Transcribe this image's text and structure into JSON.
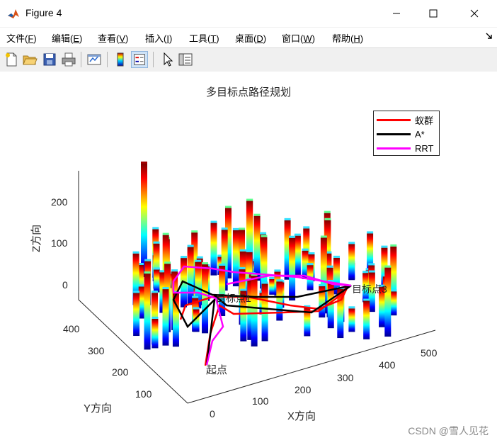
{
  "window": {
    "title": "Figure 4",
    "accent": "#d95319"
  },
  "menu": [
    {
      "label": "文件(",
      "key": "F",
      "suffix": ")"
    },
    {
      "label": "编辑(",
      "key": "E",
      "suffix": ")"
    },
    {
      "label": "查看(",
      "key": "V",
      "suffix": ")"
    },
    {
      "label": "插入(",
      "key": "I",
      "suffix": ")"
    },
    {
      "label": "工具(",
      "key": "T",
      "suffix": ")"
    },
    {
      "label": "桌面(",
      "key": "D",
      "suffix": ")"
    },
    {
      "label": "窗口(",
      "key": "W",
      "suffix": ")"
    },
    {
      "label": "帮助(",
      "key": "H",
      "suffix": ")"
    }
  ],
  "toolbar": {
    "icons": [
      "new-figure-icon",
      "open-file-icon",
      "save-icon",
      "print-icon",
      "link-plot-icon",
      "colorbar-icon",
      "legend-icon",
      "pointer-icon",
      "property-editor-icon"
    ]
  },
  "chart_data": {
    "type": "3d-bar-with-paths",
    "title": "多目标点路径规划",
    "xlabel": "X方向",
    "ylabel": "Y方向",
    "zlabel": "Z方向",
    "x_ticks": [
      "0",
      "100",
      "200",
      "300",
      "400",
      "500"
    ],
    "y_ticks": [
      "100",
      "200",
      "300",
      "400"
    ],
    "z_ticks": [
      "0",
      "100",
      "200"
    ],
    "xlim": [
      0,
      500
    ],
    "ylim": [
      0,
      450
    ],
    "zlim": [
      0,
      280
    ],
    "colormap": "jet",
    "legend_position": "top-right",
    "legend": [
      {
        "name": "蚁群",
        "color": "#ff0000"
      },
      {
        "name": "A*",
        "color": "#000000"
      },
      {
        "name": "RRT",
        "color": "#ff00ff"
      }
    ],
    "annotations": [
      {
        "text": "起点",
        "color": "#0000ff"
      },
      {
        "text": "目标点1",
        "color": "#ff0000"
      },
      {
        "text": "目标点3",
        "color": "#ff0000"
      }
    ]
  },
  "watermark": "CSDN @雪人见花"
}
